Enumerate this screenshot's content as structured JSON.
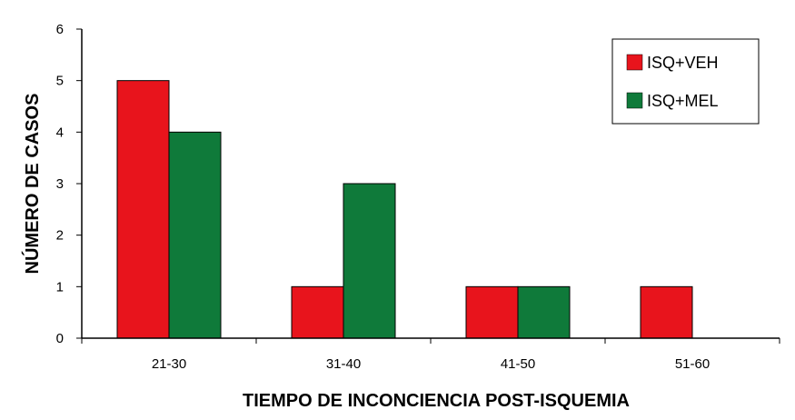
{
  "chart_data": {
    "type": "bar",
    "categories": [
      "21-30",
      "31-40",
      "41-50",
      "51-60"
    ],
    "series": [
      {
        "name": "ISQ+VEH",
        "color": "#e8141c",
        "values": [
          5,
          1,
          1,
          1
        ]
      },
      {
        "name": "ISQ+MEL",
        "color": "#0f7a3a",
        "values": [
          4,
          3,
          1,
          0
        ]
      }
    ],
    "title": "",
    "xlabel": "TIEMPO DE INCONCIENCIA POST-ISQUEMIA",
    "ylabel": "NÚMERO DE CASOS",
    "ylim": [
      0,
      6
    ],
    "yticks": [
      "0",
      "1",
      "2",
      "3",
      "4",
      "5",
      "6"
    ],
    "grid": false,
    "legend_position": "top-right"
  }
}
